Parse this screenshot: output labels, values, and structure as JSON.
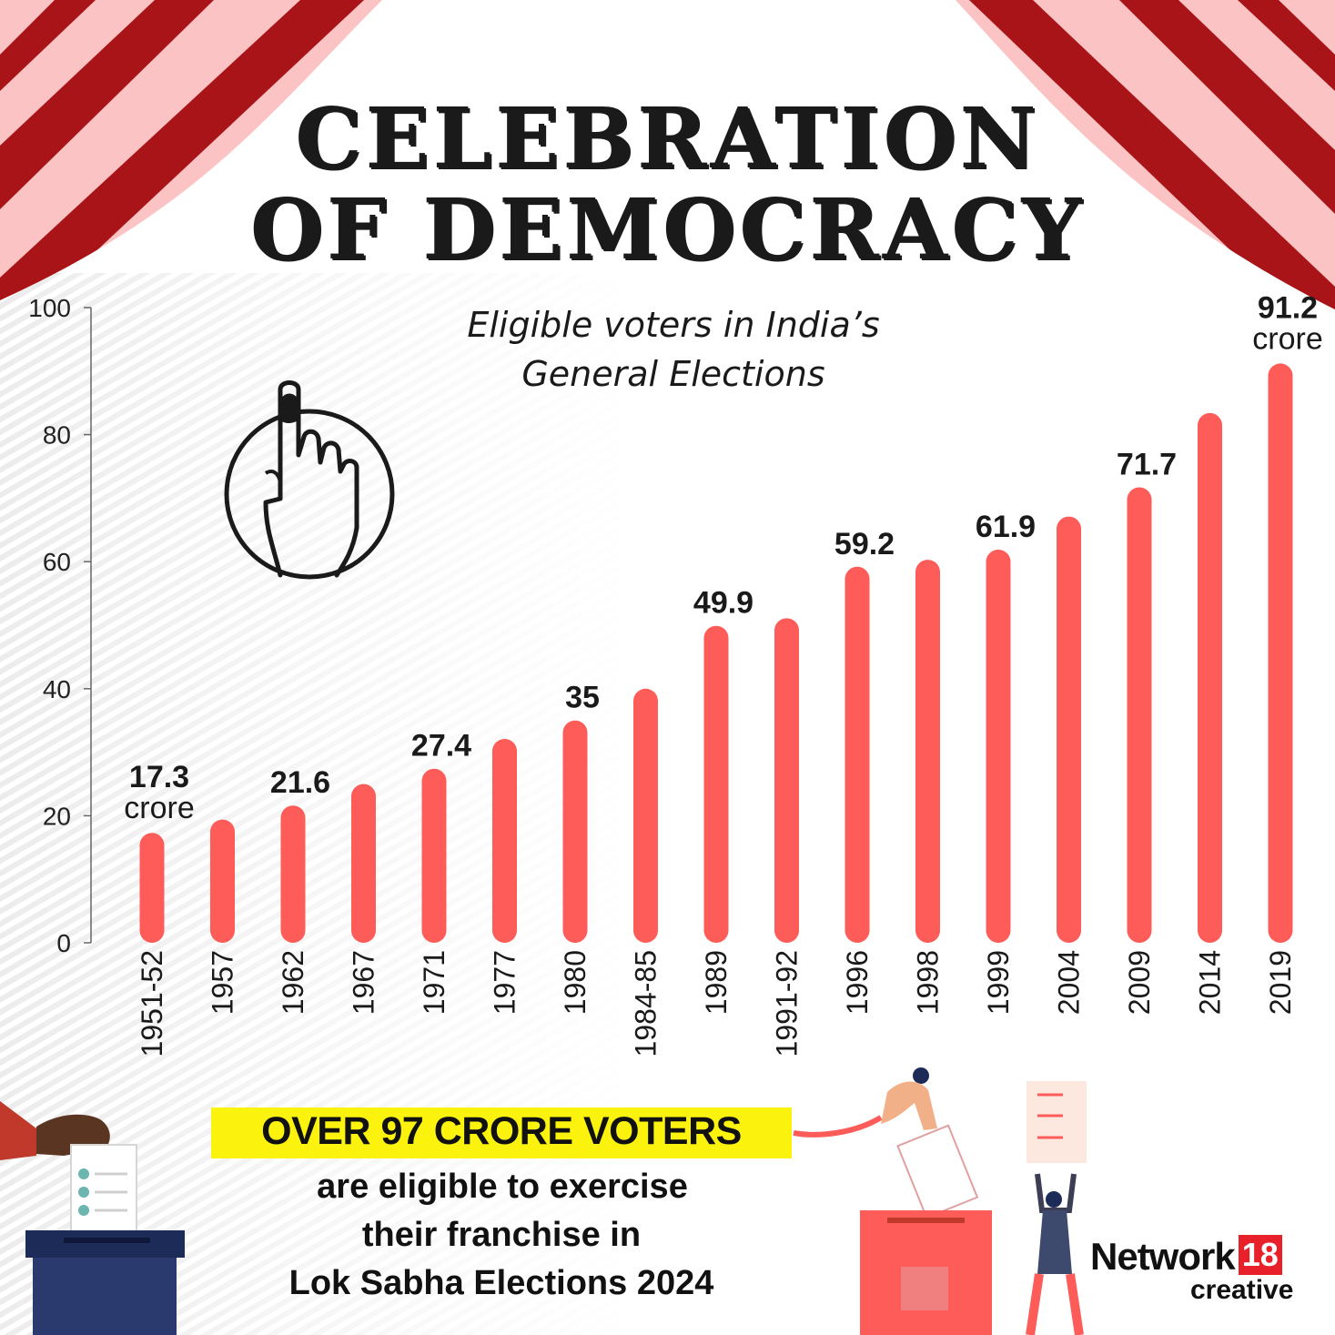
{
  "title": {
    "line1": "CELEBRATION",
    "line2": "OF DEMOCRACY"
  },
  "subtitle": {
    "line1": "Eligible voters in India’s",
    "line2": "General Elections"
  },
  "callout": {
    "headline": "OVER 97 CRORE VOTERS",
    "line1": "are eligible to exercise",
    "line2": "their franchise in",
    "line3": "Lok Sabha Elections 2024"
  },
  "brand": {
    "name": "Network",
    "number": "18",
    "sub": "creative"
  },
  "colors": {
    "bar": "#fd5c58",
    "curtain_dark": "#a81417",
    "curtain_light": "#fbc3c3",
    "highlight": "#fbf30e",
    "axis": "#666666",
    "text": "#1a1a1a"
  },
  "icons": [
    "inked-finger-icon",
    "ballot-hand-icon",
    "ballot-box-icon",
    "voter-figure-icon"
  ],
  "chart_data": {
    "type": "bar",
    "categories": [
      "1951-52",
      "1957",
      "1962",
      "1967",
      "1971",
      "1977",
      "1980",
      "1984-85",
      "1989",
      "1991-92",
      "1996",
      "1998",
      "1999",
      "2004",
      "2009",
      "2014",
      "2019"
    ],
    "values": [
      17.3,
      19.4,
      21.6,
      25.0,
      27.4,
      32.1,
      35.0,
      40.0,
      49.9,
      51.1,
      59.2,
      60.3,
      61.9,
      67.1,
      71.7,
      83.4,
      91.2
    ],
    "data_labels": [
      {
        "category": "1951-52",
        "value": "17.3",
        "unit": "crore"
      },
      {
        "category": "1962",
        "value": "21.6",
        "unit": ""
      },
      {
        "category": "1971",
        "value": "27.4",
        "unit": ""
      },
      {
        "category": "1980",
        "value": "35",
        "unit": ""
      },
      {
        "category": "1989",
        "value": "49.9",
        "unit": ""
      },
      {
        "category": "1996",
        "value": "59.2",
        "unit": ""
      },
      {
        "category": "1999",
        "value": "61.9",
        "unit": ""
      },
      {
        "category": "2009",
        "value": "71.7",
        "unit": ""
      },
      {
        "category": "2019",
        "value": "91.2",
        "unit": "crore"
      }
    ],
    "ylim": [
      0,
      100
    ],
    "yticks": [
      0,
      20,
      40,
      60,
      80,
      100
    ],
    "grid": false
  }
}
